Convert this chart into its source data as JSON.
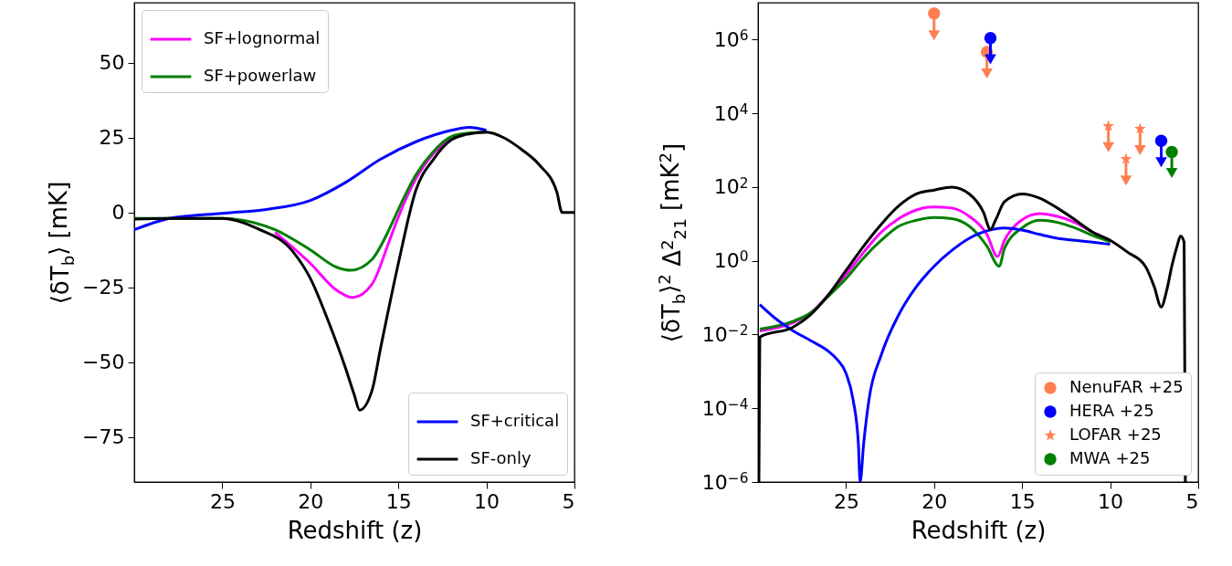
{
  "chart_data": [
    {
      "type": "line",
      "xlabel": "Redshift (z)",
      "ylabel": "⟨δT$_{b}$⟩ [mK]",
      "xlim": [
        30,
        5
      ],
      "xticks": [
        25,
        20,
        15,
        10,
        5
      ],
      "ylim": [
        -90,
        70
      ],
      "yticks": [
        50,
        25,
        0,
        {
          "value": -25,
          "label": "−25"
        },
        {
          "value": -50,
          "label": "−50"
        },
        {
          "value": -75,
          "label": "−75"
        }
      ],
      "legend": [
        "top left",
        "bottom right"
      ],
      "series": [
        {
          "name": "SF+lognormal",
          "color": "#ff00ff",
          "x": [
            22,
            20,
            18.5,
            17.6,
            16.5,
            15.5,
            15,
            14,
            13,
            12
          ],
          "values": [
            -6.7,
            -17,
            -26,
            -28.4,
            -24,
            -9.3,
            -1.5,
            11.3,
            19.7,
            24.9
          ]
        },
        {
          "name": "SF+powerlaw",
          "color": "#008000",
          "x": [
            30,
            28,
            25,
            22,
            20,
            18.5,
            17.7,
            16.5,
            15.5,
            15,
            14,
            13,
            12,
            11,
            10
          ],
          "values": [
            -2,
            -2,
            -2,
            -5.8,
            -12.5,
            -18.3,
            -19.3,
            -15.7,
            -5.4,
            1,
            12.6,
            20.4,
            25.3,
            26.5,
            26.8
          ]
        },
        {
          "name": "SF+critical",
          "color": "#0000ff",
          "x": [
            30,
            28,
            25,
            22.5,
            20,
            18,
            16,
            14,
            12,
            11,
            10
          ],
          "values": [
            -5.8,
            -2,
            -0.3,
            1,
            4,
            10,
            17.8,
            23.6,
            27.4,
            28.4,
            27.4
          ]
        },
        {
          "name": "SF-only",
          "color": "#000000",
          "x": [
            30,
            28,
            25,
            23,
            21,
            20,
            19,
            18,
            17.5,
            17.2,
            16.5,
            16,
            15,
            14,
            13,
            12,
            11,
            10,
            9,
            8,
            7,
            6,
            5.7,
            5
          ],
          "values": [
            -2.2,
            -2,
            -2,
            -5.4,
            -13,
            -22,
            -36,
            -52,
            -61,
            -66,
            -59.5,
            -45,
            -17,
            7.5,
            17.8,
            24.2,
            26.2,
            26.8,
            24.9,
            21,
            15.9,
            6.8,
            0,
            0
          ]
        }
      ]
    },
    {
      "type": "line",
      "xlabel": "Redshift (z)",
      "ylabel": "⟨δT$_{b}$⟩$^{2}$ Δ$^{2}$$_{21}$ [mK$^{2}$]",
      "xlim": [
        30,
        5
      ],
      "xticks": [
        25,
        20,
        15,
        10,
        5
      ],
      "log": "y",
      "ylim": [
        1e-06,
        10000000.0
      ],
      "yticks": [
        {
          "value": 1e-06,
          "label": "10$^{−6}$"
        },
        {
          "value": 0.0001,
          "label": "10$^{−4}$"
        },
        {
          "value": 0.01,
          "label": "10$^{−2}$"
        },
        {
          "value": 1,
          "label": "10$^{0}$"
        },
        {
          "value": 100,
          "label": "10$^{2}$"
        },
        {
          "value": 10000.0,
          "label": "10$^{4}$"
        },
        {
          "value": 1000000.0,
          "label": "10$^{6}$"
        }
      ],
      "legend": "bottom right",
      "series": [
        {
          "color": "#ff00ff",
          "x": [
            29.9,
            28,
            27,
            26,
            25,
            24,
            23,
            22,
            21,
            20,
            19,
            18,
            17,
            16.4,
            16,
            15,
            14,
            13,
            12,
            11,
            10
          ],
          "values": [
            0.0126,
            0.021,
            0.039,
            0.12,
            0.43,
            1.7,
            6,
            14,
            24,
            29,
            27,
            16,
            5.2,
            1.3,
            3.6,
            13,
            19,
            16,
            11,
            6,
            3.6
          ]
        },
        {
          "color": "#008000",
          "x": [
            29.9,
            28,
            27,
            26,
            25,
            24,
            23,
            22,
            21,
            20,
            19,
            18,
            17,
            16.3,
            16,
            15,
            14,
            13,
            12,
            11,
            10
          ],
          "values": [
            0.014,
            0.023,
            0.039,
            0.11,
            0.33,
            1.2,
            3.6,
            8.7,
            12.6,
            15,
            14,
            8.7,
            2.5,
            0.71,
            2.2,
            7.8,
            12.6,
            11,
            7.8,
            4.9,
            3.3
          ]
        },
        {
          "color": "#0000ff",
          "x": [
            29.9,
            29,
            28,
            27,
            26,
            25.5,
            25,
            24.6,
            24.3,
            24.2,
            24,
            23.7,
            23,
            22,
            21,
            20,
            19,
            18,
            17,
            16,
            15,
            14,
            13,
            12,
            11,
            10
          ],
          "values": [
            0.065,
            0.027,
            0.0126,
            0.0068,
            0.0035,
            0.0021,
            0.00089,
            0.00017,
            1.1e-05,
            1e-06,
            1.1e-05,
            0.00017,
            0.0028,
            0.035,
            0.2,
            0.71,
            1.9,
            4.1,
            6.5,
            7.8,
            6.8,
            5.2,
            4.1,
            3.6,
            3.2,
            2.8
          ]
        },
        {
          "color": "#000000",
          "x": [
            29.95,
            29.9,
            28,
            27,
            26,
            25,
            24,
            23,
            22,
            21,
            20,
            19,
            18,
            17.2,
            16.8,
            16.5,
            16,
            15,
            14,
            13,
            12,
            11,
            10,
            9,
            8,
            7.5,
            7.1,
            6.8,
            6.5,
            6.2,
            6,
            5.8,
            5.73
          ],
          "values": [
            1e-06,
            0.0085,
            0.016,
            0.035,
            0.12,
            0.55,
            2.5,
            9.8,
            31,
            65,
            83,
            100,
            65,
            21,
            7.1,
            13,
            40,
            65,
            50,
            27,
            13,
            6,
            3.6,
            1.7,
            0.71,
            0.2,
            0.056,
            0.15,
            0.71,
            2.5,
            4.7,
            3.2,
            1e-06
          ]
        },
        {
          "type": "scatter",
          "name": "NenuFAR +25",
          "color": "#ff7f50",
          "marker": "circle",
          "x": [
            20,
            17
          ],
          "values": [
            5100000,
            460000
          ],
          "errors": [
            [
              1300000,
              5100000
            ],
            [
              120000,
              460000
            ]
          ]
        },
        {
          "type": "scatter",
          "name": "HERA +25",
          "color": "#0000ff",
          "marker": "circle",
          "x": [
            16.8,
            7.1
          ],
          "values": [
            1100000,
            1800
          ],
          "errors": [
            [
              290000,
              1100000
            ],
            [
              470,
              1800
            ]
          ]
        },
        {
          "type": "scatter",
          "name": "LOFAR +25",
          "color": "#ff7f50",
          "marker": "star",
          "x": [
            10.1,
            9.1,
            8.3
          ],
          "values": [
            4500,
            580,
            3800
          ],
          "errors": [
            [
              1200,
              4500
            ],
            [
              150,
              580
            ],
            [
              1000,
              3800
            ]
          ]
        },
        {
          "type": "scatter",
          "name": "MWA +25",
          "color": "#008000",
          "marker": "circle",
          "x": [
            6.5
          ],
          "values": [
            900
          ],
          "errors": [
            [
              240,
              900
            ]
          ]
        }
      ]
    }
  ]
}
